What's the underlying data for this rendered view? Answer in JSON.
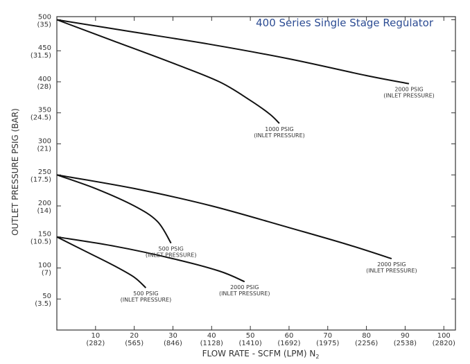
{
  "chart_data": {
    "type": "line",
    "title": "400 Series Single Stage Regulator",
    "xlabel": "FLOW RATE - SCFM (LPM) N",
    "xlabel_sub": "2",
    "ylabel": "OUTLET PRESSURE PSIG (BAR)",
    "xlim": [
      0,
      103
    ],
    "ylim": [
      0,
      505
    ],
    "grid": false,
    "x_ticks": [
      {
        "value": 10,
        "label": "10",
        "sublabel": "(282)"
      },
      {
        "value": 20,
        "label": "20",
        "sublabel": "(565)"
      },
      {
        "value": 30,
        "label": "30",
        "sublabel": "(846)"
      },
      {
        "value": 40,
        "label": "40",
        "sublabel": "(1128)"
      },
      {
        "value": 50,
        "label": "50",
        "sublabel": "(1410)"
      },
      {
        "value": 60,
        "label": "60",
        "sublabel": "(1692)"
      },
      {
        "value": 70,
        "label": "70",
        "sublabel": "(1975)"
      },
      {
        "value": 80,
        "label": "80",
        "sublabel": "(2256)"
      },
      {
        "value": 90,
        "label": "90",
        "sublabel": "(2538)"
      },
      {
        "value": 100,
        "label": "100",
        "sublabel": "(2820)"
      }
    ],
    "y_ticks": [
      {
        "value": 500,
        "label": "500",
        "sublabel": "(35)"
      },
      {
        "value": 450,
        "label": "450",
        "sublabel": "(31.5)"
      },
      {
        "value": 400,
        "label": "400",
        "sublabel": "(28)"
      },
      {
        "value": 350,
        "label": "350",
        "sublabel": "(24.5)"
      },
      {
        "value": 300,
        "label": "300",
        "sublabel": "(21)"
      },
      {
        "value": 250,
        "label": "250",
        "sublabel": "(17.5)"
      },
      {
        "value": 200,
        "label": "200",
        "sublabel": "(14)"
      },
      {
        "value": 150,
        "label": "150",
        "sublabel": "(10.5)"
      },
      {
        "value": 100,
        "label": "100",
        "sublabel": "(7)"
      },
      {
        "value": 50,
        "label": "50",
        "sublabel": "(3.5)"
      }
    ],
    "series": [
      {
        "label_lines": [
          "2000 PSIG",
          "(INLET PRESSURE)"
        ],
        "x": [
          0,
          20,
          40,
          60,
          80,
          91
        ],
        "y": [
          500,
          480,
          460,
          437,
          410,
          397
        ]
      },
      {
        "label_lines": [
          "1000 PSIG",
          "(INLET PRESSURE)"
        ],
        "x": [
          0,
          15,
          30,
          42,
          50,
          55,
          57.5
        ],
        "y": [
          500,
          465,
          430,
          400,
          370,
          348,
          333
        ]
      },
      {
        "label_lines": [
          "2000 PSIG",
          "(INLET PRESSURE)"
        ],
        "x": [
          0,
          20,
          40,
          60,
          75,
          86.5
        ],
        "y": [
          250,
          228,
          200,
          165,
          138,
          115
        ]
      },
      {
        "label_lines": [
          "500 PSIG",
          "(INLET PRESSURE)"
        ],
        "x": [
          0,
          10,
          20,
          26,
          29.5
        ],
        "y": [
          250,
          228,
          200,
          175,
          140
        ]
      },
      {
        "label_lines": [
          "2000 PSIG",
          "(INLET PRESSURE)"
        ],
        "x": [
          0,
          15,
          30,
          42,
          48.5
        ],
        "y": [
          150,
          135,
          115,
          95,
          78
        ]
      },
      {
        "label_lines": [
          "500 PSIG",
          "(INLET PRESSURE)"
        ],
        "x": [
          0,
          8,
          15,
          20,
          23
        ],
        "y": [
          150,
          125,
          103,
          85,
          68
        ]
      }
    ],
    "colors": {
      "axis": "#333333",
      "line": "#111111",
      "title": "#2c4c93"
    }
  }
}
